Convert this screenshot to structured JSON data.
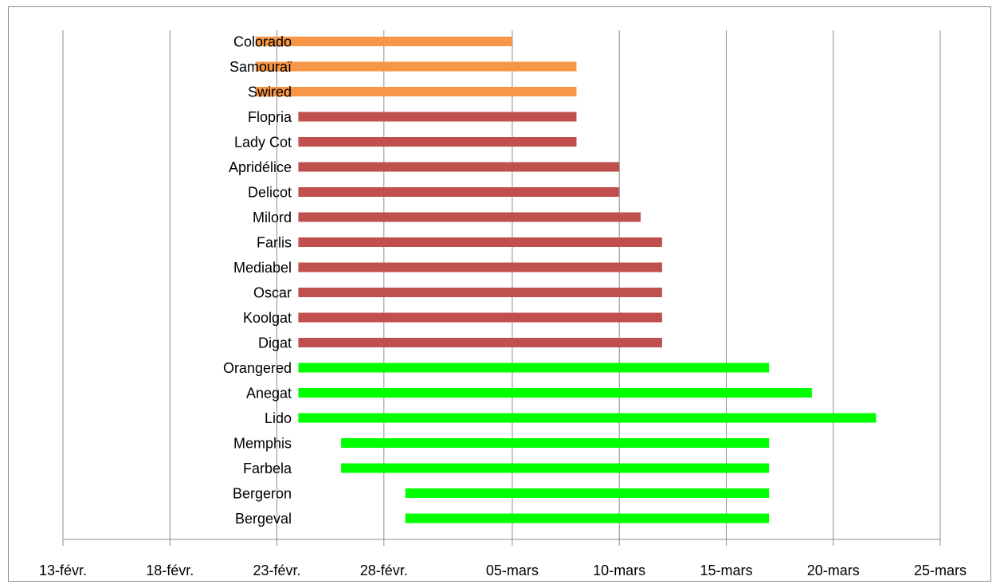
{
  "chart_data": {
    "type": "bar",
    "orientation": "horizontal-range",
    "title": "",
    "xlabel": "",
    "ylabel": "",
    "x_axis": {
      "unit": "date",
      "min": "2000-02-13",
      "max": "2000-03-25",
      "tick_labels": [
        "13-févr.",
        "18-févr.",
        "23-févr.",
        "28-févr.",
        "05-mars",
        "10-mars",
        "15-mars",
        "20-mars",
        "25-mars"
      ],
      "tick_dates": [
        "2000-02-13",
        "2000-02-18",
        "2000-02-23",
        "2000-02-28",
        "2000-03-05",
        "2000-03-10",
        "2000-03-15",
        "2000-03-20",
        "2000-03-25"
      ]
    },
    "grid": true,
    "legend": "none",
    "categories": [
      "Colorado",
      "Samouraï",
      "Swired",
      "Flopria",
      "Lady Cot",
      "Apridélice",
      "Delicot",
      "Milord",
      "Farlis",
      "Mediabel",
      "Oscar",
      "Koolgat",
      "Digat",
      "Orangered",
      "Anegat",
      "Lido",
      "Memphis",
      "Farbela",
      "Bergeron",
      "Bergeval"
    ],
    "bars": [
      {
        "label": "Colorado",
        "start": "2000-02-22",
        "end": "2000-03-05",
        "color": "#F79646"
      },
      {
        "label": "Samouraï",
        "start": "2000-02-22",
        "end": "2000-03-08",
        "color": "#F79646"
      },
      {
        "label": "Swired",
        "start": "2000-02-22",
        "end": "2000-03-08",
        "color": "#F79646"
      },
      {
        "label": "Flopria",
        "start": "2000-02-24",
        "end": "2000-03-08",
        "color": "#C0504D"
      },
      {
        "label": "Lady Cot",
        "start": "2000-02-24",
        "end": "2000-03-08",
        "color": "#C0504D"
      },
      {
        "label": "Apridélice",
        "start": "2000-02-24",
        "end": "2000-03-10",
        "color": "#C0504D"
      },
      {
        "label": "Delicot",
        "start": "2000-02-24",
        "end": "2000-03-10",
        "color": "#C0504D"
      },
      {
        "label": "Milord",
        "start": "2000-02-24",
        "end": "2000-03-11",
        "color": "#C0504D"
      },
      {
        "label": "Farlis",
        "start": "2000-02-24",
        "end": "2000-03-12",
        "color": "#C0504D"
      },
      {
        "label": "Mediabel",
        "start": "2000-02-24",
        "end": "2000-03-12",
        "color": "#C0504D"
      },
      {
        "label": "Oscar",
        "start": "2000-02-24",
        "end": "2000-03-12",
        "color": "#C0504D"
      },
      {
        "label": "Koolgat",
        "start": "2000-02-24",
        "end": "2000-03-12",
        "color": "#C0504D"
      },
      {
        "label": "Digat",
        "start": "2000-02-24",
        "end": "2000-03-12",
        "color": "#C0504D"
      },
      {
        "label": "Orangered",
        "start": "2000-02-24",
        "end": "2000-03-17",
        "color": "#00FF00"
      },
      {
        "label": "Anegat",
        "start": "2000-02-24",
        "end": "2000-03-19",
        "color": "#00FF00"
      },
      {
        "label": "Lido",
        "start": "2000-02-24",
        "end": "2000-03-22",
        "color": "#00FF00"
      },
      {
        "label": "Memphis",
        "start": "2000-02-26",
        "end": "2000-03-17",
        "color": "#00FF00"
      },
      {
        "label": "Farbela",
        "start": "2000-02-26",
        "end": "2000-03-17",
        "color": "#00FF00"
      },
      {
        "label": "Bergeron",
        "start": "2000-02-29",
        "end": "2000-03-17",
        "color": "#00FF00"
      },
      {
        "label": "Bergeval",
        "start": "2000-02-29",
        "end": "2000-03-17",
        "color": "#00FF00"
      }
    ]
  }
}
